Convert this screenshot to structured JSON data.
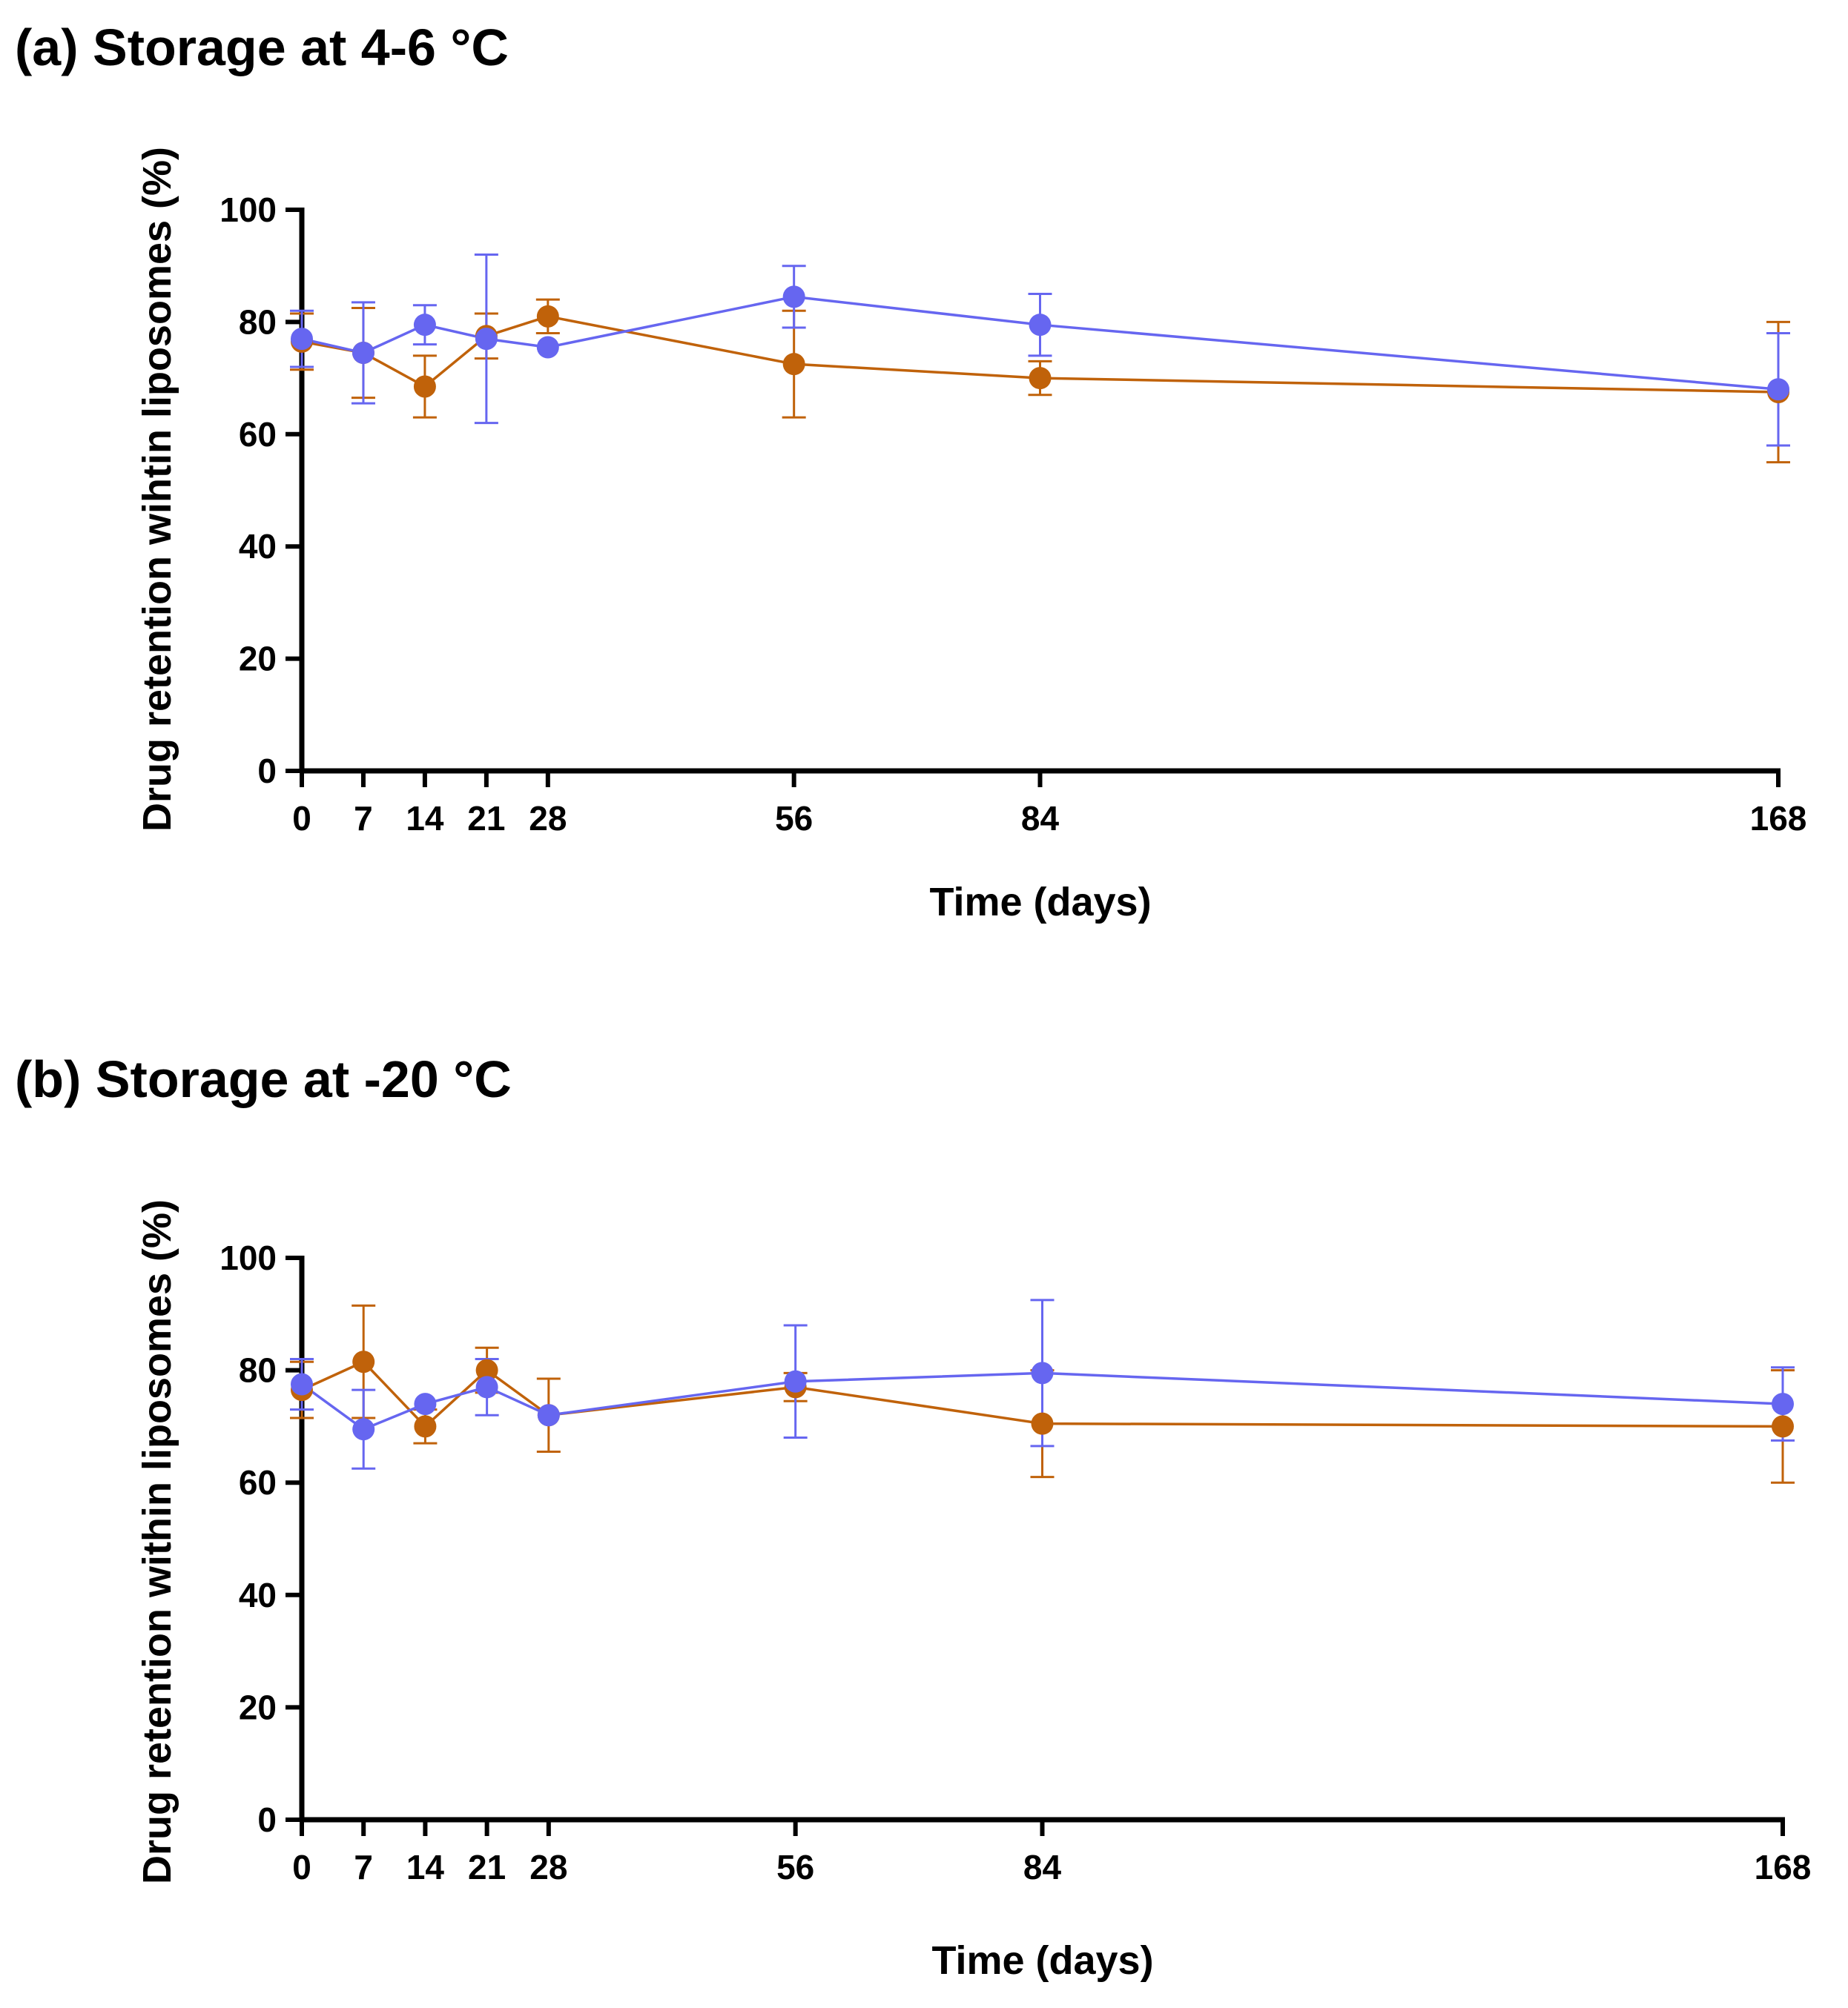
{
  "chart_data": [
    {
      "panel": "a",
      "type": "line",
      "title": "(a) Storage at 4-6 °C",
      "xlabel": "Time (days)",
      "ylabel": "Drug retention wihtin liposomes (%)",
      "xlim": [
        0,
        168
      ],
      "ylim": [
        0,
        100
      ],
      "x_ticks": [
        0,
        7,
        14,
        21,
        28,
        56,
        84,
        168
      ],
      "y_ticks": [
        0,
        20,
        40,
        60,
        80,
        100
      ],
      "grid": false,
      "legend": "none",
      "series": [
        {
          "name": "orange",
          "color": "#c0620a",
          "x": [
            0,
            7,
            14,
            21,
            28,
            56,
            84,
            168
          ],
          "y": [
            76.5,
            74.5,
            68.5,
            77.5,
            81,
            72.5,
            70,
            67.5
          ],
          "err": [
            5,
            8,
            5.5,
            4,
            3,
            9.5,
            3,
            12.5
          ]
        },
        {
          "name": "blue",
          "color": "#6666f0",
          "x": [
            0,
            7,
            14,
            21,
            28,
            56,
            84,
            168
          ],
          "y": [
            77,
            74.5,
            79.5,
            77,
            75.5,
            84.5,
            79.5,
            68
          ],
          "err": [
            5,
            9,
            3.5,
            15,
            0,
            5.5,
            5.5,
            10
          ]
        }
      ]
    },
    {
      "panel": "b",
      "type": "line",
      "title": "(b) Storage at -20 °C",
      "xlabel": "Time (days)",
      "ylabel": "Drug retention within liposomes (%)",
      "xlim": [
        0,
        168
      ],
      "ylim": [
        0,
        100
      ],
      "x_ticks": [
        0,
        7,
        14,
        21,
        28,
        56,
        84,
        168
      ],
      "y_ticks": [
        0,
        20,
        40,
        60,
        80,
        100
      ],
      "grid": false,
      "legend": "none",
      "series": [
        {
          "name": "orange",
          "color": "#c0620a",
          "x": [
            0,
            7,
            14,
            21,
            28,
            56,
            84,
            168
          ],
          "y": [
            76.5,
            81.5,
            70,
            80,
            72,
            77,
            70.5,
            70
          ],
          "err": [
            5,
            10,
            3,
            4,
            6.5,
            2.5,
            9.5,
            10
          ]
        },
        {
          "name": "blue",
          "color": "#6666f0",
          "x": [
            0,
            7,
            14,
            21,
            28,
            56,
            84,
            168
          ],
          "y": [
            77.5,
            69.5,
            74,
            77,
            72,
            78,
            79.5,
            74
          ],
          "err": [
            4.5,
            7,
            0,
            5,
            0,
            10,
            13,
            6.5
          ]
        }
      ]
    }
  ]
}
